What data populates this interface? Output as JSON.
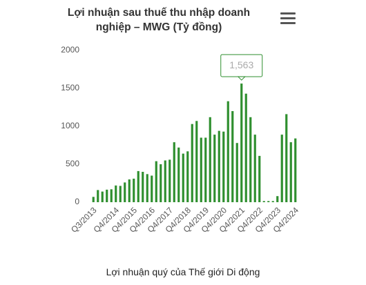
{
  "chart_data": {
    "type": "bar",
    "title": "Lợi nhuận sau thuế thu nhập doanh nghiệp – MWG (Tỷ đồng)",
    "caption": "Lợi nhuận quý của Thế giới Di động",
    "categories": [
      "Q3/2013",
      null,
      null,
      null,
      null,
      "Q4/2014",
      null,
      null,
      null,
      "Q4/2015",
      null,
      null,
      null,
      "Q4/2016",
      null,
      null,
      null,
      "Q4/2017",
      null,
      null,
      null,
      "Q4/2018",
      null,
      null,
      null,
      "Q4/2019",
      null,
      null,
      null,
      "Q4/2020",
      null,
      null,
      null,
      "Q4/2021",
      null,
      null,
      null,
      "Q4/2022",
      null,
      null,
      null,
      "Q4/2023",
      null,
      null,
      null,
      "Q4/2024"
    ],
    "values": [
      70,
      160,
      140,
      165,
      170,
      220,
      215,
      260,
      300,
      310,
      410,
      400,
      370,
      350,
      540,
      500,
      550,
      560,
      790,
      720,
      640,
      670,
      1030,
      1070,
      850,
      850,
      1120,
      890,
      940,
      930,
      1330,
      1200,
      780,
      1563,
      1430,
      1120,
      890,
      610,
      15,
      15,
      15,
      80,
      890,
      1160,
      790,
      840
    ],
    "value_labels": [
      null,
      null,
      null,
      null,
      null,
      null,
      null,
      null,
      null,
      null,
      null,
      null,
      null,
      null,
      null,
      null,
      null,
      null,
      null,
      null,
      null,
      null,
      null,
      null,
      null,
      null,
      null,
      null,
      null,
      null,
      null,
      null,
      null,
      "1,563",
      null,
      null,
      null,
      null,
      null,
      null,
      null,
      null,
      null,
      null,
      null,
      null
    ],
    "color": "#2f8f2f",
    "ylim": [
      0,
      2000
    ],
    "yticks": [
      0,
      500,
      1000,
      1500,
      2000
    ],
    "grid": false
  }
}
